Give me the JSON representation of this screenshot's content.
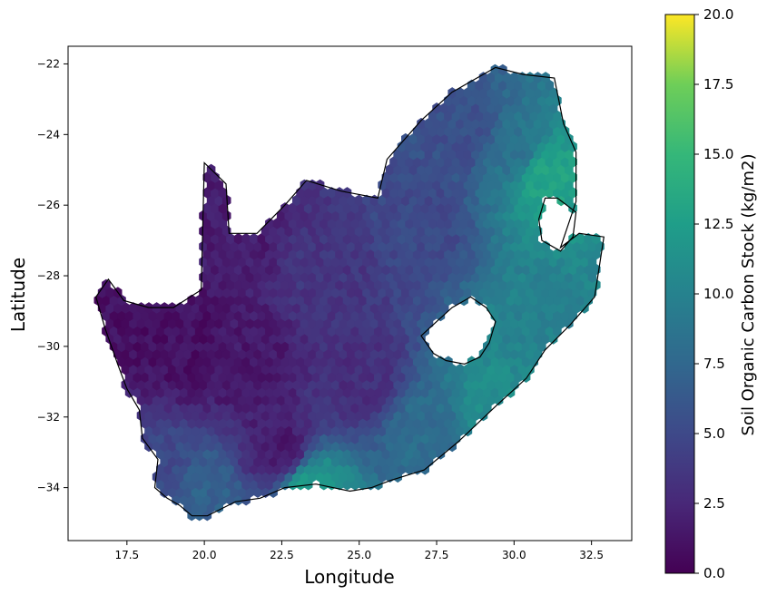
{
  "chart_data": {
    "type": "heatmap",
    "subtype": "hexbin-map",
    "xlabel": "Longitude",
    "ylabel": "Latitude",
    "xlim": [
      15.6,
      33.8
    ],
    "ylim": [
      -35.5,
      -21.5
    ],
    "x_ticks": [
      17.5,
      20.0,
      22.5,
      25.0,
      27.5,
      30.0,
      32.5
    ],
    "x_tick_labels": [
      "17.5",
      "20.0",
      "22.5",
      "25.0",
      "27.5",
      "30.0",
      "32.5"
    ],
    "y_ticks": [
      -22,
      -24,
      -26,
      -28,
      -30,
      -32,
      -34
    ],
    "y_tick_labels": [
      "−22",
      "−24",
      "−26",
      "−28",
      "−30",
      "−32",
      "−34"
    ],
    "grid": false,
    "colormap": "viridis",
    "colorbar": {
      "label": "Soil Organic Carbon Stock (kg/m2)",
      "range": [
        0.0,
        20.0
      ],
      "ticks": [
        0.0,
        2.5,
        5.0,
        7.5,
        10.0,
        12.5,
        15.0,
        17.5,
        20.0
      ],
      "tick_labels": [
        "0.0",
        "2.5",
        "5.0",
        "7.5",
        "10.0",
        "12.5",
        "15.0",
        "17.5",
        "20.0"
      ]
    },
    "boundary_outline": [
      [
        16.5,
        -28.6
      ],
      [
        16.9,
        -28.1
      ],
      [
        17.4,
        -28.7
      ],
      [
        18.2,
        -28.9
      ],
      [
        19.0,
        -28.9
      ],
      [
        19.9,
        -28.4
      ],
      [
        20.0,
        -24.8
      ],
      [
        20.7,
        -25.4
      ],
      [
        20.8,
        -26.8
      ],
      [
        21.7,
        -26.8
      ],
      [
        22.6,
        -26.0
      ],
      [
        23.3,
        -25.3
      ],
      [
        24.4,
        -25.6
      ],
      [
        25.6,
        -25.8
      ],
      [
        25.9,
        -24.7
      ],
      [
        27.0,
        -23.6
      ],
      [
        28.0,
        -22.8
      ],
      [
        29.4,
        -22.1
      ],
      [
        30.3,
        -22.3
      ],
      [
        31.3,
        -22.4
      ],
      [
        31.6,
        -23.7
      ],
      [
        32.0,
        -24.5
      ],
      [
        32.0,
        -25.9
      ],
      [
        31.5,
        -27.2
      ],
      [
        32.1,
        -26.8
      ],
      [
        32.9,
        -26.9
      ],
      [
        32.6,
        -28.6
      ],
      [
        31.8,
        -29.4
      ],
      [
        31.0,
        -30.1
      ],
      [
        30.4,
        -30.9
      ],
      [
        29.4,
        -31.7
      ],
      [
        28.2,
        -32.7
      ],
      [
        27.1,
        -33.5
      ],
      [
        26.0,
        -33.8
      ],
      [
        25.4,
        -34.0
      ],
      [
        24.7,
        -34.1
      ],
      [
        23.6,
        -33.9
      ],
      [
        22.6,
        -34.0
      ],
      [
        21.8,
        -34.3
      ],
      [
        21.0,
        -34.4
      ],
      [
        20.1,
        -34.8
      ],
      [
        19.6,
        -34.8
      ],
      [
        19.2,
        -34.5
      ],
      [
        18.8,
        -34.3
      ],
      [
        18.4,
        -34.0
      ],
      [
        18.5,
        -33.2
      ],
      [
        18.0,
        -32.6
      ],
      [
        17.9,
        -31.8
      ],
      [
        17.5,
        -31.2
      ],
      [
        17.2,
        -30.5
      ],
      [
        16.8,
        -29.5
      ],
      [
        16.5,
        -28.6
      ]
    ],
    "lesotho_hole": [
      [
        27.0,
        -29.7
      ],
      [
        27.5,
        -29.3
      ],
      [
        28.0,
        -28.9
      ],
      [
        28.6,
        -28.6
      ],
      [
        29.1,
        -28.9
      ],
      [
        29.4,
        -29.3
      ],
      [
        29.2,
        -29.9
      ],
      [
        28.9,
        -30.3
      ],
      [
        28.4,
        -30.5
      ],
      [
        27.8,
        -30.4
      ],
      [
        27.4,
        -30.2
      ],
      [
        27.0,
        -29.7
      ]
    ],
    "eswatini_hole": [
      [
        31.0,
        -25.8
      ],
      [
        31.4,
        -25.8
      ],
      [
        32.0,
        -26.2
      ],
      [
        31.9,
        -26.9
      ],
      [
        31.5,
        -27.3
      ],
      [
        30.9,
        -27.0
      ],
      [
        30.8,
        -26.4
      ],
      [
        31.0,
        -25.8
      ]
    ],
    "value_field_anchors": [
      {
        "lon": 17.5,
        "lat": -29.5,
        "value": 1.0
      },
      {
        "lon": 19.5,
        "lat": -30.0,
        "value": 1.0
      },
      {
        "lon": 21.0,
        "lat": -27.0,
        "value": 1.8
      },
      {
        "lon": 21.5,
        "lat": -30.5,
        "value": 1.5
      },
      {
        "lon": 22.5,
        "lat": -33.0,
        "value": 1.5
      },
      {
        "lon": 24.0,
        "lat": -28.0,
        "value": 3.5
      },
      {
        "lon": 25.0,
        "lat": -31.0,
        "value": 3.0
      },
      {
        "lon": 27.0,
        "lat": -26.5,
        "value": 5.0
      },
      {
        "lon": 28.5,
        "lat": -24.0,
        "value": 5.5
      },
      {
        "lon": 30.0,
        "lat": -24.5,
        "value": 8.5
      },
      {
        "lon": 31.0,
        "lat": -25.2,
        "value": 13.0
      },
      {
        "lon": 30.5,
        "lat": -29.5,
        "value": 10.0
      },
      {
        "lon": 29.5,
        "lat": -31.5,
        "value": 11.0
      },
      {
        "lon": 27.0,
        "lat": -32.5,
        "value": 8.0
      },
      {
        "lon": 23.4,
        "lat": -34.0,
        "value": 12.5
      },
      {
        "lon": 20.0,
        "lat": -34.2,
        "value": 7.0
      },
      {
        "lon": 18.5,
        "lat": -33.5,
        "value": 5.0
      }
    ]
  }
}
